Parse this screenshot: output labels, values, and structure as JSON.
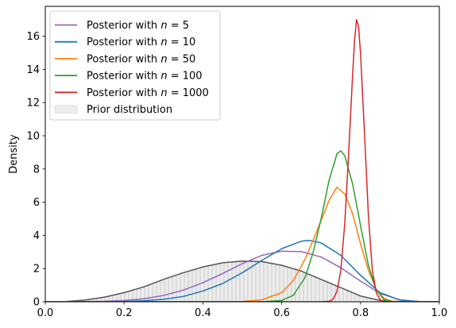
{
  "chart_data": {
    "type": "line",
    "xlabel": "",
    "ylabel": "Density",
    "xlim": [
      0.0,
      1.0
    ],
    "ylim": [
      0,
      17.8
    ],
    "x_ticks": [
      "0.0",
      "0.2",
      "0.4",
      "0.6",
      "0.8",
      "1.0"
    ],
    "y_ticks": [
      "0",
      "2",
      "4",
      "6",
      "8",
      "10",
      "12",
      "14",
      "16"
    ],
    "grid": false,
    "legend_position": "top-left",
    "legend_ordering": [
      "n5",
      "n10",
      "n50",
      "n100",
      "n1000",
      "prior"
    ],
    "prior": {
      "name": "Prior distribution",
      "fill_color": "#ececec",
      "line_color": "#555555",
      "hatch_color": "#c4c4c4",
      "x": [
        0.0,
        0.05,
        0.1,
        0.15,
        0.2,
        0.25,
        0.3,
        0.35,
        0.4,
        0.45,
        0.5,
        0.55,
        0.6,
        0.65,
        0.7,
        0.75,
        0.8,
        0.85,
        0.9,
        0.95,
        1.0
      ],
      "y": [
        0.0,
        0.01,
        0.1,
        0.28,
        0.55,
        0.9,
        1.35,
        1.75,
        2.1,
        2.35,
        2.45,
        2.42,
        2.2,
        1.85,
        1.35,
        0.85,
        0.35,
        0.08,
        0.01,
        0.0,
        0.0
      ]
    },
    "series": [
      {
        "key": "n5",
        "legend_prefix": "Posterior with ",
        "legend_var": "n",
        "legend_value": "5",
        "color": "#9467bd",
        "x": [
          0.0,
          0.05,
          0.1,
          0.15,
          0.2,
          0.25,
          0.3,
          0.35,
          0.4,
          0.45,
          0.5,
          0.55,
          0.6,
          0.65,
          0.7,
          0.75,
          0.8,
          0.85,
          0.9,
          0.95,
          1.0
        ],
        "y": [
          0.0,
          0.0,
          0.01,
          0.03,
          0.08,
          0.18,
          0.38,
          0.7,
          1.15,
          1.7,
          2.3,
          2.8,
          3.05,
          3.02,
          2.7,
          2.05,
          1.25,
          0.5,
          0.12,
          0.01,
          0.0
        ]
      },
      {
        "key": "n10",
        "legend_prefix": "Posterior with ",
        "legend_var": "n",
        "legend_value": "10",
        "color": "#1f77b4",
        "x": [
          0.0,
          0.1,
          0.2,
          0.25,
          0.3,
          0.35,
          0.4,
          0.45,
          0.5,
          0.55,
          0.6,
          0.65,
          0.67,
          0.7,
          0.75,
          0.8,
          0.85,
          0.9,
          0.95,
          1.0
        ],
        "y": [
          0.0,
          0.0,
          0.02,
          0.06,
          0.15,
          0.32,
          0.65,
          1.1,
          1.75,
          2.5,
          3.2,
          3.65,
          3.7,
          3.55,
          2.8,
          1.6,
          0.55,
          0.1,
          0.01,
          0.0
        ]
      },
      {
        "key": "n50",
        "legend_prefix": "Posterior with ",
        "legend_var": "n",
        "legend_value": "50",
        "color": "#ff7f0e",
        "x": [
          0.0,
          0.45,
          0.5,
          0.55,
          0.6,
          0.63,
          0.66,
          0.69,
          0.72,
          0.74,
          0.76,
          0.78,
          0.8,
          0.82,
          0.84,
          0.86,
          0.88,
          0.9,
          1.0
        ],
        "y": [
          0.0,
          0.0,
          0.02,
          0.12,
          0.55,
          1.3,
          2.6,
          4.3,
          6.1,
          6.9,
          6.5,
          5.3,
          3.5,
          1.9,
          0.75,
          0.2,
          0.04,
          0.0,
          0.0
        ]
      },
      {
        "key": "n100",
        "legend_prefix": "Posterior with ",
        "legend_var": "n",
        "legend_value": "100",
        "color": "#2ca02c",
        "x": [
          0.0,
          0.55,
          0.6,
          0.63,
          0.66,
          0.68,
          0.7,
          0.72,
          0.74,
          0.75,
          0.76,
          0.78,
          0.8,
          0.82,
          0.84,
          0.86,
          0.88,
          1.0
        ],
        "y": [
          0.0,
          0.0,
          0.08,
          0.4,
          1.5,
          3.0,
          5.0,
          7.3,
          8.9,
          9.1,
          8.8,
          7.1,
          4.6,
          2.2,
          0.7,
          0.12,
          0.01,
          0.0
        ]
      },
      {
        "key": "n1000",
        "legend_prefix": "Posterior with ",
        "legend_var": "n",
        "legend_value": "1000",
        "color": "#d62728",
        "x": [
          0.0,
          0.7,
          0.72,
          0.73,
          0.74,
          0.75,
          0.76,
          0.77,
          0.78,
          0.785,
          0.79,
          0.795,
          0.8,
          0.81,
          0.82,
          0.83,
          0.84,
          0.85,
          0.86,
          1.0
        ],
        "y": [
          0.0,
          0.0,
          0.03,
          0.15,
          0.6,
          1.9,
          4.7,
          9.0,
          13.7,
          15.8,
          17.0,
          16.6,
          15.0,
          10.2,
          5.2,
          1.9,
          0.55,
          0.12,
          0.01,
          0.0
        ]
      }
    ]
  }
}
